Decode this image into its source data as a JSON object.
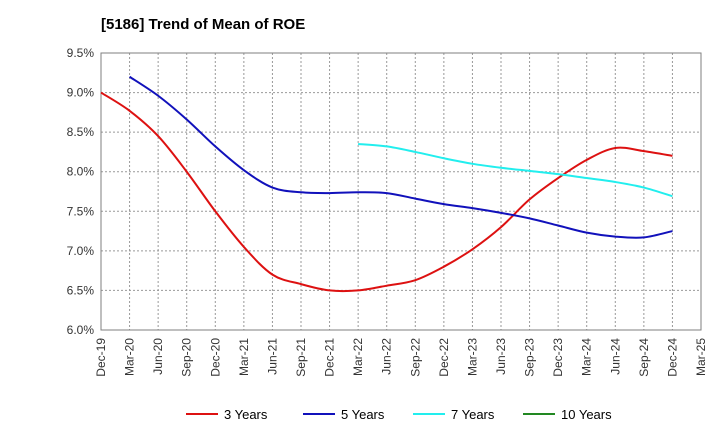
{
  "chart_data": {
    "type": "line",
    "title": "[5186]  Trend of Mean of ROE",
    "xlabel": "",
    "ylabel": "",
    "x": [
      "Dec-19",
      "Mar-20",
      "Jun-20",
      "Sep-20",
      "Dec-20",
      "Mar-21",
      "Jun-21",
      "Sep-21",
      "Dec-21",
      "Mar-22",
      "Jun-22",
      "Sep-22",
      "Dec-22",
      "Mar-23",
      "Jun-23",
      "Sep-23",
      "Dec-23",
      "Mar-24",
      "Jun-24",
      "Sep-24",
      "Dec-24",
      "Mar-25"
    ],
    "ylim": [
      6.0,
      9.5
    ],
    "yticks": [
      "6.0%",
      "6.5%",
      "7.0%",
      "7.5%",
      "8.0%",
      "8.5%",
      "9.0%",
      "9.5%"
    ],
    "grid": true,
    "legend_position": "bottom",
    "series": [
      {
        "name": "3 Years",
        "color": "#dd1111",
        "values": [
          9.0,
          8.77,
          8.45,
          8.0,
          7.5,
          7.05,
          6.7,
          6.58,
          6.5,
          6.5,
          6.56,
          6.63,
          6.8,
          7.02,
          7.3,
          7.65,
          7.92,
          8.15,
          8.3,
          8.26,
          8.2,
          null
        ]
      },
      {
        "name": "5 Years",
        "color": "#1111bb",
        "values": [
          null,
          9.2,
          8.96,
          8.66,
          8.32,
          8.02,
          7.8,
          7.74,
          7.73,
          7.74,
          7.73,
          7.66,
          7.59,
          7.54,
          7.48,
          7.41,
          7.32,
          7.23,
          7.18,
          7.17,
          7.25,
          null
        ]
      },
      {
        "name": "7 Years",
        "color": "#22eeee",
        "values": [
          null,
          null,
          null,
          null,
          null,
          null,
          null,
          null,
          null,
          8.35,
          8.32,
          8.25,
          8.17,
          8.1,
          8.05,
          8.01,
          7.97,
          7.92,
          7.87,
          7.8,
          7.69,
          null
        ]
      },
      {
        "name": "10 Years",
        "color": "#228822",
        "values": [
          null,
          null,
          null,
          null,
          null,
          null,
          null,
          null,
          null,
          null,
          null,
          null,
          null,
          null,
          null,
          null,
          null,
          null,
          null,
          null,
          null,
          null
        ]
      }
    ]
  }
}
